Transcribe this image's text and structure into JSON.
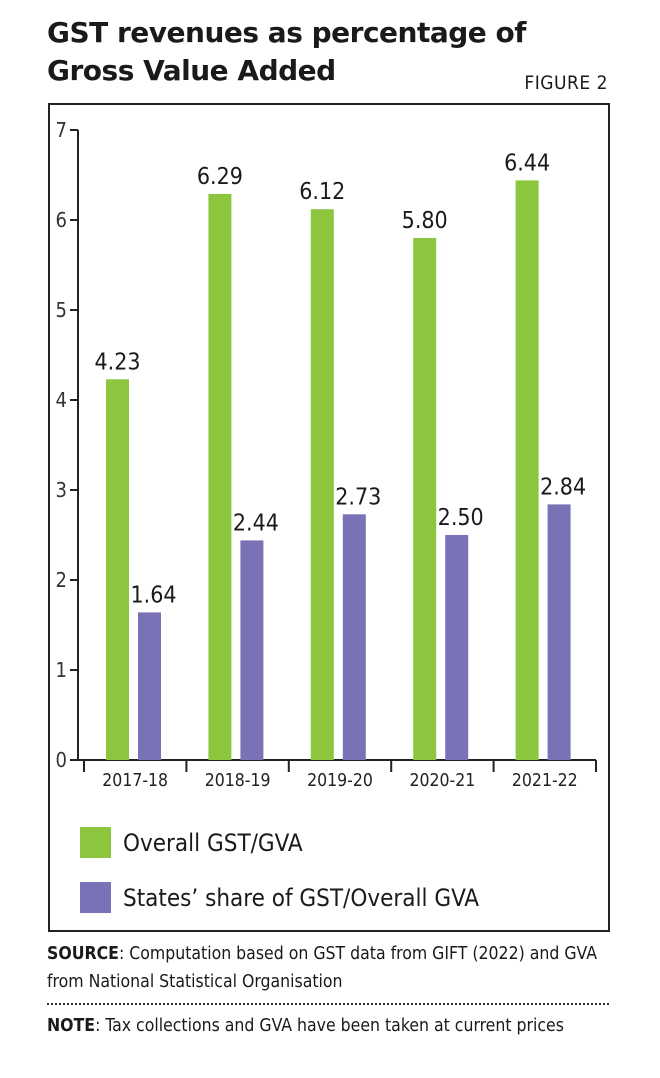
{
  "header": {
    "title_line1": "GST revenues as percentage of",
    "title_line2": "Gross Value Added",
    "figure_label": "FIGURE 2"
  },
  "chart_data": {
    "type": "bar",
    "title": "GST revenues as percentage of Gross Value Added",
    "xlabel": "",
    "ylabel": "",
    "ylim": [
      0,
      7
    ],
    "yticks": [
      0,
      1,
      2,
      3,
      4,
      5,
      6,
      7
    ],
    "categories": [
      "2017-18",
      "2018-19",
      "2019-20",
      "2020-21",
      "2021-22"
    ],
    "series": [
      {
        "name": "Overall GST/GVA",
        "color": "#8cc63f",
        "values": [
          4.23,
          6.29,
          6.12,
          5.8,
          6.44
        ],
        "labels": [
          "4.23",
          "6.29",
          "6.12",
          "5.80",
          "6.44"
        ]
      },
      {
        "name": "States' share of GST/Overall GVA",
        "color": "#7a72b6",
        "values": [
          1.64,
          2.44,
          2.73,
          2.5,
          2.84
        ],
        "labels": [
          "1.64",
          "2.44",
          "2.73",
          "2.50",
          "2.84"
        ]
      }
    ],
    "legend_position": "bottom-left",
    "grid": false
  },
  "legend": {
    "items": [
      {
        "label": "Overall GST/GVA",
        "color": "#8cc63f"
      },
      {
        "label": "States’ share of GST/Overall GVA",
        "color": "#7a72b6"
      }
    ]
  },
  "footer": {
    "source_label": "SOURCE",
    "source_text": ": Computation based on GST data from GIFT (2022) and GVA from National Statistical Organisation",
    "note_label": "NOTE",
    "note_text": ": Tax collections and GVA have been taken at current prices"
  }
}
